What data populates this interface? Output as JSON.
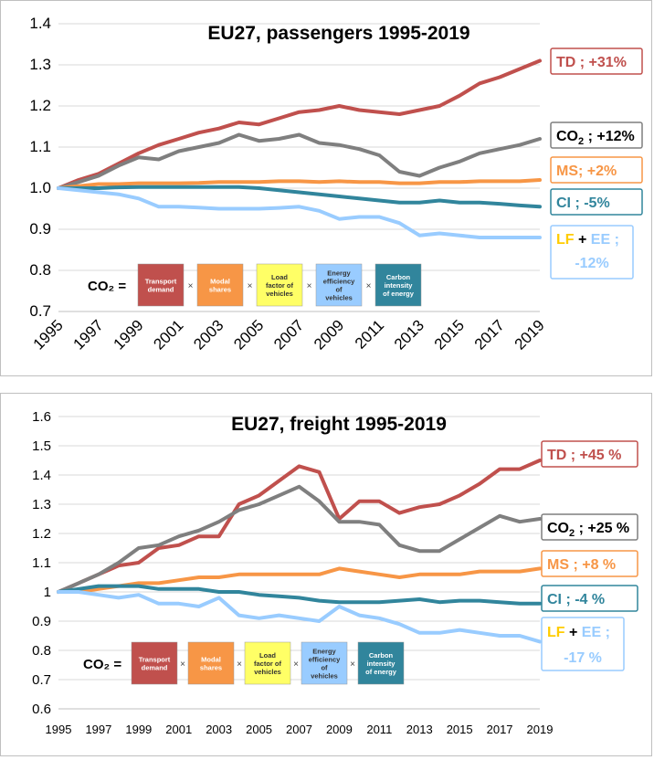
{
  "chart_data": [
    {
      "type": "line",
      "title": "EU27, passengers 1995-2019",
      "x": [
        1995,
        1996,
        1997,
        1998,
        1999,
        2000,
        2001,
        2002,
        2003,
        2004,
        2005,
        2006,
        2007,
        2008,
        2009,
        2010,
        2011,
        2012,
        2013,
        2014,
        2015,
        2016,
        2017,
        2018,
        2019
      ],
      "xticks": [
        "1995",
        "1997",
        "1999",
        "2001",
        "2003",
        "2005",
        "2007",
        "2009",
        "2011",
        "2013",
        "2015",
        "2017",
        "2019"
      ],
      "yticks": [
        "0.7",
        "0.8",
        "0.9",
        "1.0",
        "1.1",
        "1.2",
        "1.3",
        "1.4"
      ],
      "ylim": [
        0.7,
        1.4
      ],
      "grid": true,
      "formula": {
        "lhs": "CO₂ =",
        "terms": [
          {
            "label": "Transport demand",
            "color": "#c0504d"
          },
          {
            "label": "Modal shares",
            "color": "#f79646"
          },
          {
            "label": "Load factor of vehicles",
            "color": "#ffff66"
          },
          {
            "label": "Energy efficiency of vehicles",
            "color": "#99ccff"
          },
          {
            "label": "Carbon intensity of energy",
            "color": "#31859c"
          }
        ]
      },
      "series": [
        {
          "name": "TD ; +31%",
          "color": "#c0504d",
          "values": [
            1.0,
            1.02,
            1.035,
            1.06,
            1.085,
            1.105,
            1.12,
            1.135,
            1.145,
            1.16,
            1.155,
            1.17,
            1.185,
            1.19,
            1.2,
            1.19,
            1.185,
            1.18,
            1.19,
            1.2,
            1.225,
            1.255,
            1.27,
            1.29,
            1.31
          ]
        },
        {
          "name": "CO₂ ; +12%",
          "color": "#7f7f7f",
          "values": [
            1.0,
            1.015,
            1.03,
            1.055,
            1.075,
            1.07,
            1.09,
            1.1,
            1.11,
            1.13,
            1.115,
            1.12,
            1.13,
            1.11,
            1.105,
            1.095,
            1.08,
            1.04,
            1.03,
            1.05,
            1.065,
            1.085,
            1.095,
            1.105,
            1.12
          ]
        },
        {
          "name": "MS; +2%",
          "color": "#f79646",
          "values": [
            1.0,
            1.005,
            1.01,
            1.01,
            1.012,
            1.012,
            1.012,
            1.013,
            1.015,
            1.015,
            1.015,
            1.017,
            1.017,
            1.015,
            1.017,
            1.015,
            1.015,
            1.012,
            1.012,
            1.015,
            1.015,
            1.017,
            1.017,
            1.017,
            1.02
          ]
        },
        {
          "name": "CI ; -5%",
          "color": "#31859c",
          "values": [
            1.0,
            1.0,
            1.0,
            1.002,
            1.003,
            1.003,
            1.003,
            1.003,
            1.003,
            1.003,
            1.0,
            0.995,
            0.99,
            0.985,
            0.98,
            0.975,
            0.97,
            0.965,
            0.965,
            0.97,
            0.965,
            0.965,
            0.962,
            0.958,
            0.955
          ]
        },
        {
          "name": "LF + EE ; -12%",
          "color": "#99ccff",
          "values": [
            1.0,
            0.995,
            0.99,
            0.985,
            0.975,
            0.955,
            0.955,
            0.953,
            0.95,
            0.95,
            0.95,
            0.952,
            0.955,
            0.945,
            0.925,
            0.93,
            0.93,
            0.915,
            0.885,
            0.89,
            0.885,
            0.88,
            0.88,
            0.88,
            0.88
          ]
        }
      ],
      "labels": [
        {
          "prefix": "TD ; +31%",
          "sub": "",
          "suffix": "",
          "color": "#c0504d"
        },
        {
          "prefix": "CO",
          "sub": "2",
          "suffix": " ; +12%",
          "color": "#000000"
        },
        {
          "prefix": "MS; +2%",
          "sub": "",
          "suffix": "",
          "color": "#f79646"
        },
        {
          "prefix": "CI ; -5%",
          "sub": "",
          "suffix": "",
          "color": "#31859c"
        }
      ],
      "lfee_label": {
        "line1_lf": "LF",
        "line1_plus": " + ",
        "line1_ee": "EE ;",
        "line2": "-12%"
      }
    },
    {
      "type": "line",
      "title": "EU27, freight 1995-2019",
      "x": [
        1995,
        1996,
        1997,
        1998,
        1999,
        2000,
        2001,
        2002,
        2003,
        2004,
        2005,
        2006,
        2007,
        2008,
        2009,
        2010,
        2011,
        2012,
        2013,
        2014,
        2015,
        2016,
        2017,
        2018,
        2019
      ],
      "xticks": [
        "1995",
        "1997",
        "1999",
        "2001",
        "2003",
        "2005",
        "2007",
        "2009",
        "2011",
        "2013",
        "2015",
        "2017",
        "2019"
      ],
      "yticks": [
        "0.6",
        "0.7",
        "0.8",
        "0.9",
        "1",
        "1.1",
        "1.2",
        "1.3",
        "1.4",
        "1.5",
        "1.6"
      ],
      "ylim": [
        0.6,
        1.6
      ],
      "grid": true,
      "formula": {
        "lhs": "CO₂ =",
        "terms": [
          {
            "label": "Transport demand",
            "color": "#c0504d"
          },
          {
            "label": "Modal shares",
            "color": "#f79646"
          },
          {
            "label": "Load factor of vehicles",
            "color": "#ffff66"
          },
          {
            "label": "Energy efficiency of vehicles",
            "color": "#99ccff"
          },
          {
            "label": "Carbon intensity of energy",
            "color": "#31859c"
          }
        ]
      },
      "series": [
        {
          "name": "TD ; +45 %",
          "color": "#c0504d",
          "values": [
            1.0,
            1.03,
            1.06,
            1.09,
            1.1,
            1.15,
            1.16,
            1.19,
            1.19,
            1.3,
            1.33,
            1.38,
            1.43,
            1.41,
            1.25,
            1.31,
            1.31,
            1.27,
            1.29,
            1.3,
            1.33,
            1.37,
            1.42,
            1.42,
            1.45
          ]
        },
        {
          "name": "CO₂ ; +25 %",
          "color": "#7f7f7f",
          "values": [
            1.0,
            1.03,
            1.06,
            1.1,
            1.15,
            1.16,
            1.19,
            1.21,
            1.24,
            1.28,
            1.3,
            1.33,
            1.36,
            1.31,
            1.24,
            1.24,
            1.23,
            1.16,
            1.14,
            1.14,
            1.18,
            1.22,
            1.26,
            1.24,
            1.25
          ]
        },
        {
          "name": "MS ; +8 %",
          "color": "#f79646",
          "values": [
            1.0,
            1.0,
            1.01,
            1.02,
            1.03,
            1.03,
            1.04,
            1.05,
            1.05,
            1.06,
            1.06,
            1.06,
            1.06,
            1.06,
            1.08,
            1.07,
            1.06,
            1.05,
            1.06,
            1.06,
            1.06,
            1.07,
            1.07,
            1.07,
            1.08
          ]
        },
        {
          "name": "CI ; -4 %",
          "color": "#31859c",
          "values": [
            1.0,
            1.01,
            1.02,
            1.02,
            1.02,
            1.01,
            1.01,
            1.01,
            1.0,
            1.0,
            0.99,
            0.985,
            0.98,
            0.97,
            0.965,
            0.965,
            0.965,
            0.97,
            0.975,
            0.965,
            0.97,
            0.97,
            0.965,
            0.96,
            0.96
          ]
        },
        {
          "name": "LF + EE ; -17 %",
          "color": "#99ccff",
          "values": [
            1.0,
            1.0,
            0.99,
            0.98,
            0.99,
            0.96,
            0.96,
            0.95,
            0.98,
            0.92,
            0.91,
            0.92,
            0.91,
            0.9,
            0.95,
            0.92,
            0.91,
            0.89,
            0.86,
            0.86,
            0.87,
            0.86,
            0.85,
            0.85,
            0.83
          ]
        }
      ],
      "labels": [
        {
          "prefix": "TD ; +45 %",
          "sub": "",
          "suffix": "",
          "color": "#c0504d"
        },
        {
          "prefix": "CO",
          "sub": "2",
          "suffix": " ; +25 %",
          "color": "#000000"
        },
        {
          "prefix": "MS ; +8 %",
          "sub": "",
          "suffix": "",
          "color": "#f79646"
        },
        {
          "prefix": "CI ; -4 %",
          "sub": "",
          "suffix": "",
          "color": "#31859c"
        }
      ],
      "lfee_label": {
        "line1_lf": "LF",
        "line1_plus": " + ",
        "line1_ee": "EE ;",
        "line2": "-17 %"
      }
    }
  ]
}
